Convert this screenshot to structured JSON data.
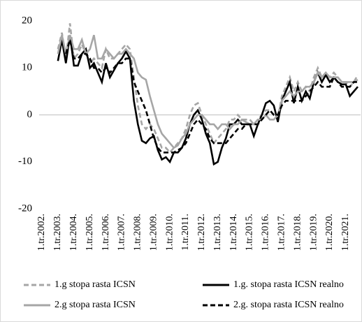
{
  "chart_data": {
    "type": "line",
    "categories": [
      "1.tr.2002.",
      null,
      null,
      null,
      "1.tr.2003.",
      null,
      null,
      null,
      "1.tr.2004.",
      null,
      null,
      null,
      "1.tr.2005.",
      null,
      null,
      null,
      "1.tr.2006.",
      null,
      null,
      null,
      "1.tr.2007.",
      null,
      null,
      null,
      "1.tr.2008.",
      null,
      null,
      null,
      "1.tr.2009.",
      null,
      null,
      null,
      "1.tr.2010.",
      null,
      null,
      null,
      "1.tr.2011.",
      null,
      null,
      null,
      "1.tr.2012.",
      null,
      null,
      null,
      "1.tr.2013.",
      null,
      null,
      null,
      "1.tr.2014.",
      null,
      null,
      null,
      "1.tr.2015.",
      null,
      null,
      null,
      "1.tr.2016.",
      null,
      null,
      null,
      "1.tr.2017.",
      null,
      null,
      null,
      "1.tr.2018.",
      null,
      null,
      null,
      "1.tr.2019.",
      null,
      null,
      null,
      "1.tr.2020.",
      null,
      null,
      null,
      "1.tr.2021.",
      null,
      null,
      null
    ],
    "series": [
      {
        "name": "1.g stopa rasta ICSN",
        "color": "#a6a6a6",
        "style": "dashed",
        "values": [
          null,
          null,
          null,
          null,
          14,
          17.5,
          12,
          19.5,
          12,
          13,
          15,
          13,
          11,
          12,
          11,
          10,
          14,
          12,
          12,
          13,
          14,
          15,
          14,
          8,
          2,
          -2,
          -3,
          -2,
          -3,
          -5,
          -7,
          -7,
          -8,
          -7,
          -6,
          -5,
          -3,
          0,
          2,
          2.5,
          0,
          -2,
          -4,
          -6,
          -5,
          -4,
          -3,
          -1,
          -1,
          0,
          -1,
          -1,
          -1,
          -2,
          -1,
          0,
          1,
          1,
          0,
          -1,
          4,
          6,
          8,
          5,
          7,
          5,
          6,
          5,
          8,
          10,
          8,
          9,
          8,
          9,
          8,
          7,
          7,
          6,
          7,
          8.5
        ]
      },
      {
        "name": "1.g. stopa rasta ICSN realno",
        "color": "#000000",
        "style": "solid",
        "values": [
          null,
          null,
          null,
          null,
          11.5,
          16,
          11,
          17,
          10.5,
          10.5,
          13,
          14,
          10,
          11,
          9,
          7,
          11,
          8,
          9.5,
          11,
          12,
          13.5,
          12,
          3,
          -2,
          -5.5,
          -6,
          -5,
          -4.5,
          -7.5,
          -9.5,
          -9,
          -10,
          -8,
          -8,
          -7,
          -5,
          -2,
          0,
          1,
          -1,
          -4,
          -6,
          -10.5,
          -10,
          -7,
          -5,
          -2,
          -2,
          -1,
          -2,
          -2,
          -2,
          -4.5,
          -2,
          0,
          2.5,
          3,
          2,
          -1.5,
          3,
          5,
          7,
          2.5,
          6,
          3,
          5,
          3.5,
          7,
          9,
          7,
          8.5,
          7,
          8,
          7,
          6.5,
          6.5,
          4,
          5,
          6
        ]
      },
      {
        "name": "2.g stopa rasta ICSN",
        "color": "#a6a6a6",
        "style": "solid",
        "values": [
          null,
          null,
          null,
          null,
          13,
          17,
          13,
          17,
          14,
          14,
          16,
          13,
          14,
          17,
          12,
          12,
          14,
          13,
          12,
          13,
          13,
          14,
          13,
          12,
          9,
          8,
          7.5,
          4,
          1,
          -2,
          -4,
          -5,
          -6,
          -7,
          -6.5,
          -5,
          -4,
          -2,
          -1,
          0,
          0,
          -1,
          -2,
          -2,
          -3,
          -2,
          -2,
          -3,
          -2,
          -2,
          -1,
          -1.5,
          -2,
          -2,
          -1,
          -1,
          0,
          -1,
          -1,
          0,
          3,
          4,
          5,
          4,
          5,
          5,
          6,
          6,
          7,
          9,
          8,
          9,
          8,
          8,
          8,
          7,
          7,
          7,
          7,
          7.5
        ]
      },
      {
        "name": "2.g. stopa rasta ICSN realno",
        "color": "#000000",
        "style": "dashed",
        "values": [
          null,
          null,
          null,
          null,
          null,
          null,
          13,
          16,
          12,
          12,
          13,
          13,
          12,
          10,
          10,
          9,
          10,
          9,
          10,
          11,
          11,
          12,
          12,
          7,
          5,
          3,
          1,
          -2,
          -5,
          -7,
          -8,
          -8,
          -8,
          -8,
          -7.5,
          -7,
          -6,
          -4,
          -2,
          -1,
          -2,
          -3,
          -5,
          -6,
          -6,
          -6,
          -6,
          -5,
          -4,
          -3,
          -3,
          -2,
          -2,
          -2,
          -2,
          -1,
          0,
          1,
          0,
          0,
          2,
          3,
          3,
          3,
          3,
          3,
          4,
          5,
          6,
          7,
          6,
          6,
          6,
          8,
          7,
          6,
          6,
          6,
          7,
          7
        ]
      }
    ],
    "ylim": [
      -20,
      20
    ],
    "yticks": [
      -20,
      -10,
      0,
      10,
      20
    ]
  }
}
